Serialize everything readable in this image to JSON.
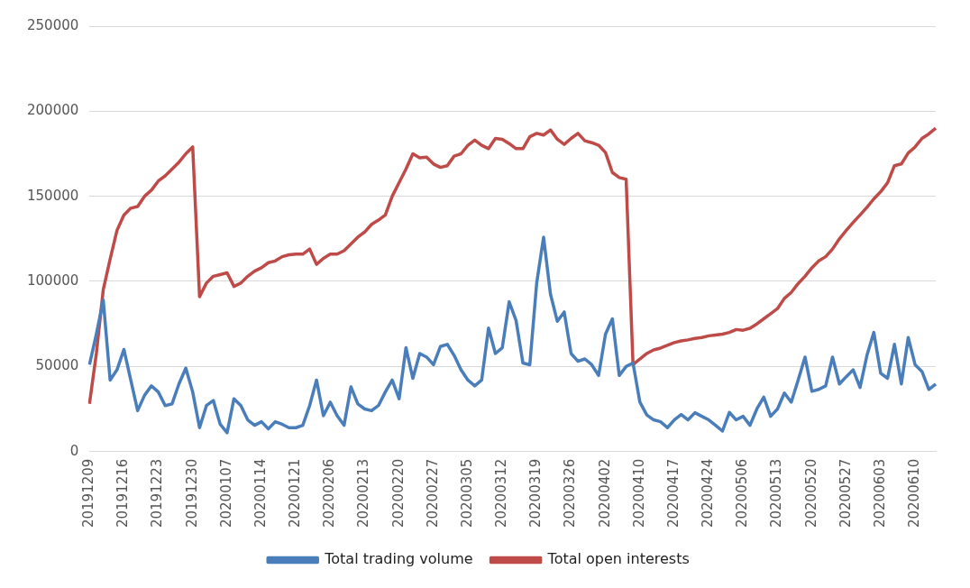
{
  "chart_data": {
    "type": "line",
    "categories": [
      "20191209",
      null,
      null,
      null,
      null,
      "20191216",
      null,
      null,
      null,
      null,
      "20191223",
      null,
      null,
      null,
      null,
      "20191230",
      null,
      null,
      null,
      null,
      "20200107",
      null,
      null,
      null,
      null,
      "20200114",
      null,
      null,
      null,
      null,
      "20200121",
      null,
      null,
      null,
      null,
      "20200206",
      null,
      null,
      null,
      null,
      "20200213",
      null,
      null,
      null,
      null,
      "20200220",
      null,
      null,
      null,
      null,
      "20200227",
      null,
      null,
      null,
      null,
      "20200305",
      null,
      null,
      null,
      null,
      "20200312",
      null,
      null,
      null,
      null,
      "20200319",
      null,
      null,
      null,
      null,
      "20200326",
      null,
      null,
      null,
      null,
      "20200402",
      null,
      null,
      null,
      null,
      "20200410",
      null,
      null,
      null,
      null,
      "20200417",
      null,
      null,
      null,
      null,
      "20200424",
      null,
      null,
      null,
      null,
      "20200506",
      null,
      null,
      null,
      null,
      "20200513",
      null,
      null,
      null,
      null,
      "20200520",
      null,
      null,
      null,
      null,
      "20200527",
      null,
      null,
      null,
      null,
      "20200603",
      null,
      null,
      null,
      null,
      "20200610",
      null,
      null,
      null
    ],
    "series": [
      {
        "name": "Total trading volume",
        "color": "#4a7ebb",
        "values": [
          51000,
          69000,
          89000,
          42000,
          48000,
          60000,
          42000,
          24000,
          33000,
          38600,
          35000,
          27000,
          28000,
          39700,
          49000,
          35000,
          14000,
          27000,
          30000,
          16000,
          11000,
          31000,
          27000,
          18600,
          15400,
          17500,
          13300,
          17500,
          16000,
          14000,
          14000,
          15400,
          27000,
          42000,
          21000,
          29000,
          21000,
          15400,
          38000,
          28000,
          25000,
          24000,
          27000,
          35000,
          42000,
          31000,
          61000,
          43000,
          57600,
          55500,
          51000,
          61700,
          63000,
          56500,
          48000,
          42000,
          38600,
          42000,
          72600,
          57600,
          61000,
          88000,
          77000,
          52000,
          51000,
          99000,
          126000,
          92600,
          76500,
          82000,
          57600,
          53000,
          54400,
          51000,
          44700,
          69000,
          78000,
          44700,
          50000,
          52000,
          29000,
          21500,
          18600,
          17500,
          14000,
          18600,
          21700,
          18600,
          22800,
          20700,
          18600,
          15400,
          12000,
          23000,
          18600,
          20700,
          15400,
          25000,
          32000,
          20700,
          25000,
          34400,
          29000,
          42000,
          55500,
          35400,
          36500,
          38600,
          55500,
          39700,
          44000,
          48000,
          37600,
          56500,
          70000,
          46000,
          43000,
          63000,
          39700,
          67000,
          51000,
          47000,
          36500,
          39700
        ]
      },
      {
        "name": "Total open interests",
        "color": "#be4b48",
        "values": [
          28000,
          57600,
          95000,
          113000,
          130000,
          139000,
          143000,
          144000,
          150000,
          153600,
          159000,
          162000,
          166000,
          170000,
          175000,
          179000,
          91000,
          99000,
          103000,
          104000,
          105000,
          97000,
          99000,
          103000,
          106000,
          108000,
          111000,
          112000,
          114500,
          115600,
          116000,
          116000,
          119000,
          110000,
          113500,
          116000,
          116000,
          118000,
          122000,
          126000,
          129000,
          133500,
          136000,
          139000,
          150000,
          158000,
          166000,
          175000,
          172600,
          173000,
          169000,
          167000,
          168000,
          173600,
          175000,
          180000,
          183000,
          180000,
          178000,
          184000,
          183500,
          181000,
          178000,
          178000,
          185000,
          187000,
          186000,
          189000,
          183500,
          180500,
          184000,
          187000,
          182600,
          181500,
          180000,
          175700,
          164000,
          161000,
          160000,
          51000,
          54400,
          57600,
          59700,
          60800,
          62400,
          64000,
          65000,
          65600,
          66500,
          67000,
          68000,
          68500,
          69000,
          70000,
          71700,
          71300,
          72400,
          75000,
          78000,
          81000,
          84000,
          90000,
          93500,
          98700,
          103000,
          108000,
          112000,
          114500,
          119000,
          125000,
          130000,
          134600,
          139000,
          143500,
          148500,
          152700,
          158000,
          168000,
          169000,
          175500,
          179000,
          184000,
          186700,
          190000
        ]
      }
    ],
    "ylim": [
      0,
      250000
    ],
    "yticks": [
      0,
      50000,
      100000,
      150000,
      200000,
      250000
    ],
    "grid": "y",
    "legend": "bottom",
    "marker": "none",
    "line_style": "solid"
  }
}
